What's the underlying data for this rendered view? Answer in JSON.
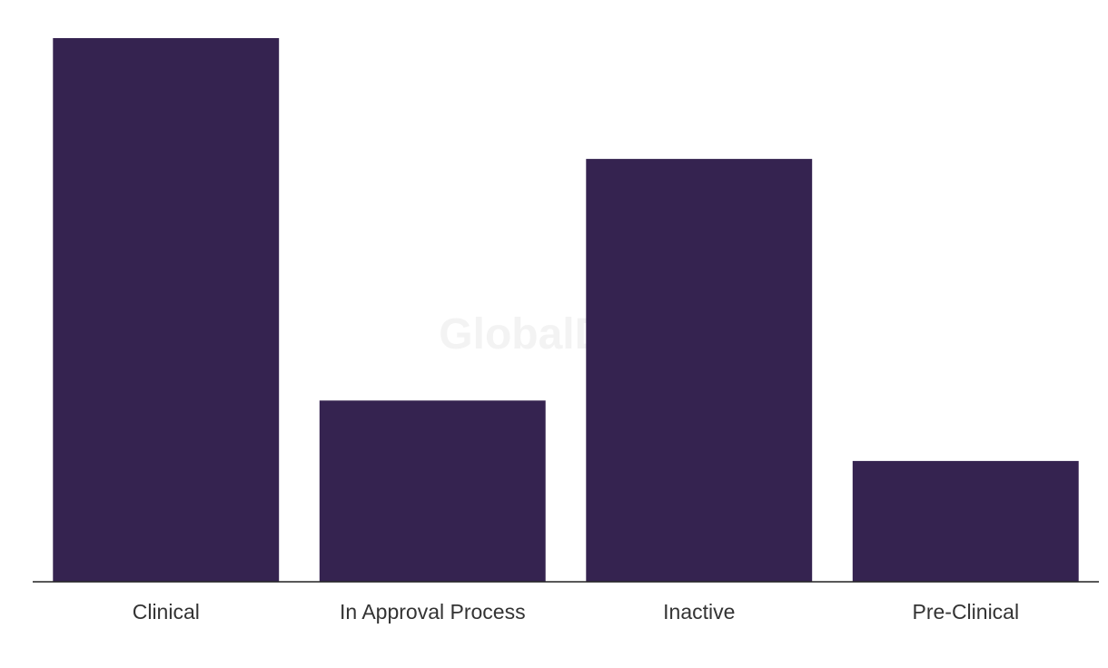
{
  "watermark": "GlobalData",
  "colors": {
    "bar": "#352350",
    "axis": "#222222",
    "label": "#333333"
  },
  "chart_data": {
    "type": "bar",
    "categories": [
      "Clinical",
      "In Approval Process",
      "Inactive",
      "Pre-Clinical"
    ],
    "values": [
      9,
      3,
      7,
      2
    ],
    "title": "",
    "xlabel": "",
    "ylabel": "",
    "ylim": [
      0,
      9
    ],
    "grid": false,
    "legend": "none"
  }
}
